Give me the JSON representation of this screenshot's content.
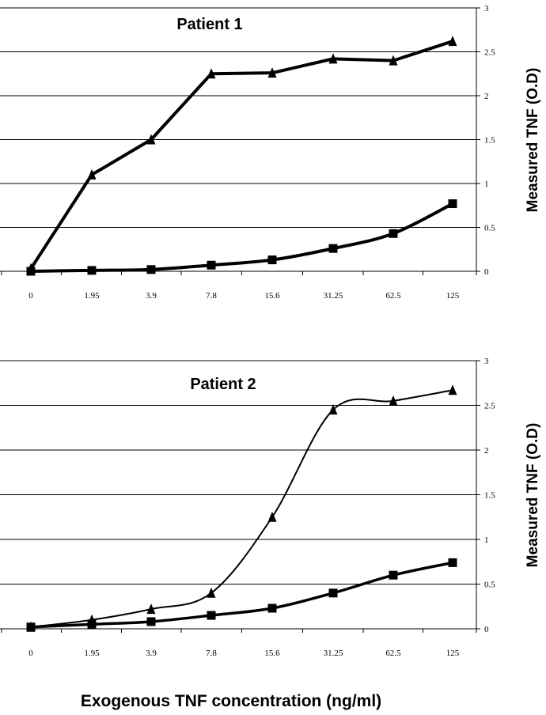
{
  "figure": {
    "xlabel": "Exogenous TNF concentration (ng/ml)"
  },
  "chart_data": [
    {
      "type": "line",
      "title": "Patient 1",
      "xlabel": "",
      "ylabel": "Measured TNF (O.D)",
      "categories": [
        "0",
        "1.95",
        "3.9",
        "7.8",
        "15.6",
        "31.25",
        "62.5",
        "125"
      ],
      "ylim": [
        0,
        3
      ],
      "yticks": [
        "0",
        "0.5",
        "1",
        "1.5",
        "2",
        "2.5",
        "3"
      ],
      "grid": true,
      "series": [
        {
          "marker": "triangle",
          "color": "#000000",
          "smooth": false,
          "values": [
            0.03,
            1.1,
            1.5,
            2.25,
            2.26,
            2.42,
            2.4,
            2.62
          ]
        },
        {
          "marker": "square",
          "color": "#000000",
          "smooth": true,
          "values": [
            0.0,
            0.01,
            0.02,
            0.07,
            0.13,
            0.26,
            0.43,
            0.77
          ]
        }
      ]
    },
    {
      "type": "line",
      "title": "Patient 2",
      "xlabel": "",
      "ylabel": "Measured TNF (O.D)",
      "categories": [
        "0",
        "1.95",
        "3.9",
        "7.8",
        "15.6",
        "31.25",
        "62.5",
        "125"
      ],
      "ylim": [
        0,
        3
      ],
      "yticks": [
        "0",
        "0.5",
        "1",
        "1.5",
        "2",
        "2.5",
        "3"
      ],
      "grid": true,
      "series": [
        {
          "marker": "triangle",
          "color": "#000000",
          "smooth": true,
          "values": [
            0.02,
            0.1,
            0.22,
            0.4,
            1.25,
            2.45,
            2.55,
            2.67
          ]
        },
        {
          "marker": "square",
          "color": "#000000",
          "smooth": true,
          "values": [
            0.02,
            0.05,
            0.08,
            0.15,
            0.23,
            0.4,
            0.6,
            0.74
          ]
        }
      ]
    }
  ]
}
